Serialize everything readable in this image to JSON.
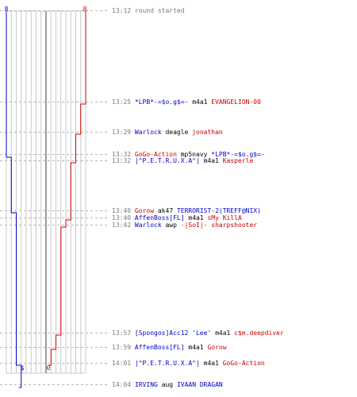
{
  "header": {
    "team_blue_count": "8",
    "team_red_count": "8",
    "team_blue_color": "#0000cc",
    "team_red_color": "#cc0000"
  },
  "end_markers": {
    "blue": "$",
    "red": "0"
  },
  "events": [
    {
      "time": "13:12",
      "text": "round started",
      "type": "start"
    },
    {
      "time": "13:25",
      "killer": "*LPB*-=$o.g$=-",
      "killer_team": "blue",
      "weapon": "m4a1",
      "victim": "EVANGELION-00",
      "victim_team": "red"
    },
    {
      "time": "13:29",
      "killer": "Warlock",
      "killer_team": "blue",
      "weapon": "deagle",
      "victim": "jonathan",
      "victim_team": "red"
    },
    {
      "time": "13:32",
      "killer": "GoGo-Action",
      "killer_team": "red",
      "weapon": "mp5navy",
      "victim": "*LPB*-=$o.g$=-",
      "victim_team": "blue"
    },
    {
      "time": "13:32",
      "killer": "|^P.E.T.R.U.X.A^|",
      "killer_team": "blue",
      "weapon": "m4a1",
      "victim": "Kasperle",
      "victim_team": "red"
    },
    {
      "time": "13:40",
      "killer": "Gorow",
      "killer_team": "red",
      "weapon": "ak47",
      "victim": "TERRORIST-2(TREFF@NIX)",
      "victim_team": "blue"
    },
    {
      "time": "13:40",
      "killer": "AffenBoss[FL]",
      "killer_team": "blue",
      "weapon": "m4a1",
      "victim": "sMy KillA",
      "victim_team": "red"
    },
    {
      "time": "13:42",
      "killer": "Warlock",
      "killer_team": "blue",
      "weapon": "awp",
      "victim": "-|SoI|- sharpshooter",
      "victim_team": "red"
    },
    {
      "time": "13:57",
      "killer": "[Spongos]Acc12 'Lee'",
      "killer_team": "blue",
      "weapon": "m4a1",
      "victim": "c$m.deepdiver",
      "victim_team": "red"
    },
    {
      "time": "13:59",
      "killer": "AffenBoss[FL]",
      "killer_team": "blue",
      "weapon": "m4a1",
      "victim": "Gorow",
      "victim_team": "red"
    },
    {
      "time": "14:01",
      "killer": "|^P.E.T.R.U.X.A^|",
      "killer_team": "blue",
      "weapon": "m4a1",
      "victim": "GoGo-Action",
      "victim_team": "red"
    },
    {
      "time": "14:04",
      "killer": "IRVING",
      "killer_team": "blue",
      "weapon": "aug",
      "victim": "IVAAN DRAGAN",
      "victim_team": "blue"
    }
  ]
}
